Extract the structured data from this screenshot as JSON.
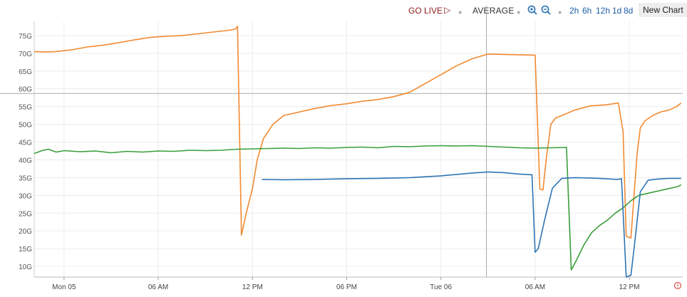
{
  "toolbar": {
    "go_live": "GO LIVE",
    "go_live_icon": "play-outline-icon",
    "average": "AVERAGE",
    "zoom_in_icon": "zoom-in-icon",
    "zoom_out_icon": "zoom-out-icon",
    "ranges": [
      "2h",
      "6h",
      "12h",
      "1d",
      "8d"
    ],
    "new_chart": "New Chart",
    "colors": {
      "go_live": "#8b1a1a",
      "range_links": "#2060a8"
    }
  },
  "chart_data": {
    "type": "line",
    "title": "",
    "xlabel": "",
    "ylabel": "",
    "y_tick_labels": [
      "10G",
      "15G",
      "20G",
      "25G",
      "30G",
      "35G",
      "40G",
      "45G",
      "50G",
      "55G",
      "60G",
      "65G",
      "70G",
      "75G"
    ],
    "y_ticks": [
      10,
      15,
      20,
      25,
      30,
      35,
      40,
      45,
      50,
      55,
      60,
      65,
      70,
      75
    ],
    "ylim": [
      7,
      79
    ],
    "x_ticks": [
      {
        "label": "Mon 05",
        "t": 0
      },
      {
        "label": "06 AM",
        "t": 6
      },
      {
        "label": "12 PM",
        "t": 12
      },
      {
        "label": "06 PM",
        "t": 18
      },
      {
        "label": "Tue 06",
        "t": 24
      },
      {
        "label": "06 AM",
        "t": 30
      },
      {
        "label": "12 PM",
        "t": 36
      }
    ],
    "xlim": [
      -1.9,
      39.4
    ],
    "grid": true,
    "legend": "none",
    "crosshair": {
      "t": 26.9,
      "y": 58.7
    },
    "series": [
      {
        "color": "#f28a30",
        "x": [
          -1.9,
          -1.2,
          -0.5,
          0.5,
          1.5,
          2.5,
          3.5,
          4.5,
          5.5,
          6.5,
          7.5,
          8.5,
          9.5,
          10.5,
          10.9,
          11.05,
          11.3,
          11.6,
          12.0,
          12.3,
          12.7,
          13.3,
          14.0,
          15.0,
          16.0,
          17.0,
          18.0,
          19.0,
          20.0,
          21.0,
          22.0,
          23.0,
          24.0,
          25.0,
          26.0,
          27.0,
          28.0,
          29.0,
          30.0,
          30.3,
          30.5,
          30.7,
          31.0,
          31.3,
          31.6,
          32.5,
          33.5,
          34.5,
          35.3,
          35.6,
          35.8,
          36.1,
          36.3,
          36.5,
          36.7,
          37.0,
          37.5,
          38.0,
          38.5,
          39.0,
          39.3
        ],
        "y": [
          70.5,
          70.4,
          70.5,
          71.0,
          71.8,
          72.3,
          73.0,
          73.8,
          74.5,
          74.8,
          75.0,
          75.5,
          76.0,
          76.5,
          76.8,
          77.6,
          18.8,
          25.0,
          32.0,
          40.0,
          46.0,
          50.0,
          52.5,
          53.5,
          54.5,
          55.3,
          55.8,
          56.5,
          57.0,
          57.8,
          59.0,
          61.5,
          64.0,
          66.5,
          68.5,
          69.8,
          69.7,
          69.6,
          69.5,
          31.8,
          31.5,
          40.0,
          50.0,
          51.8,
          52.3,
          54.0,
          55.2,
          55.5,
          56.0,
          48.0,
          18.5,
          18.0,
          30.0,
          42.0,
          49.0,
          51.0,
          52.5,
          53.5,
          54.0,
          55.0,
          56.0
        ]
      },
      {
        "color": "#3a9e3a",
        "x": [
          -1.9,
          -1.4,
          -1.0,
          -0.5,
          0.0,
          1.0,
          2.0,
          3.0,
          4.0,
          5.0,
          6.0,
          7.0,
          8.0,
          9.0,
          10.0,
          11.0,
          12.0,
          13.0,
          14.0,
          15.0,
          16.0,
          17.0,
          18.0,
          19.0,
          20.0,
          21.0,
          22.0,
          23.0,
          24.0,
          25.0,
          26.0,
          27.0,
          28.0,
          29.0,
          30.0,
          31.0,
          32.0,
          32.3,
          32.6,
          33.1,
          33.6,
          34.1,
          34.6,
          35.1,
          35.6,
          36.1,
          36.6,
          37.1,
          37.6,
          38.1,
          38.6,
          39.1,
          39.3
        ],
        "y": [
          41.8,
          42.6,
          43.0,
          42.2,
          42.6,
          42.3,
          42.5,
          42.0,
          42.4,
          42.2,
          42.5,
          42.4,
          42.7,
          42.6,
          42.7,
          43.0,
          43.1,
          43.2,
          43.3,
          43.2,
          43.4,
          43.3,
          43.5,
          43.6,
          43.4,
          43.8,
          43.7,
          43.9,
          44.0,
          43.9,
          44.0,
          43.8,
          43.6,
          43.4,
          43.3,
          43.4,
          43.5,
          9.0,
          11.5,
          16.0,
          19.5,
          21.5,
          23.0,
          25.0,
          26.5,
          28.5,
          30.0,
          30.5,
          31.0,
          31.5,
          32.0,
          32.5,
          33.0
        ]
      },
      {
        "color": "#2e74b5",
        "x": [
          12.6,
          14.0,
          16.0,
          18.0,
          20.0,
          22.0,
          24.0,
          26.0,
          27.0,
          28.0,
          29.0,
          29.8,
          30.0,
          30.2,
          30.6,
          31.1,
          31.7,
          32.5,
          33.5,
          34.5,
          35.2,
          35.5,
          35.8,
          36.1,
          36.3,
          36.7,
          37.2,
          37.8,
          38.5,
          39.3
        ],
        "y": [
          34.5,
          34.4,
          34.5,
          34.7,
          34.8,
          35.0,
          35.5,
          36.3,
          36.6,
          36.4,
          36.0,
          35.8,
          14.0,
          15.0,
          23.0,
          32.0,
          34.8,
          35.0,
          34.9,
          34.7,
          34.5,
          34.7,
          7.0,
          7.5,
          15.0,
          31.0,
          34.3,
          34.6,
          34.8,
          34.8
        ]
      }
    ]
  }
}
